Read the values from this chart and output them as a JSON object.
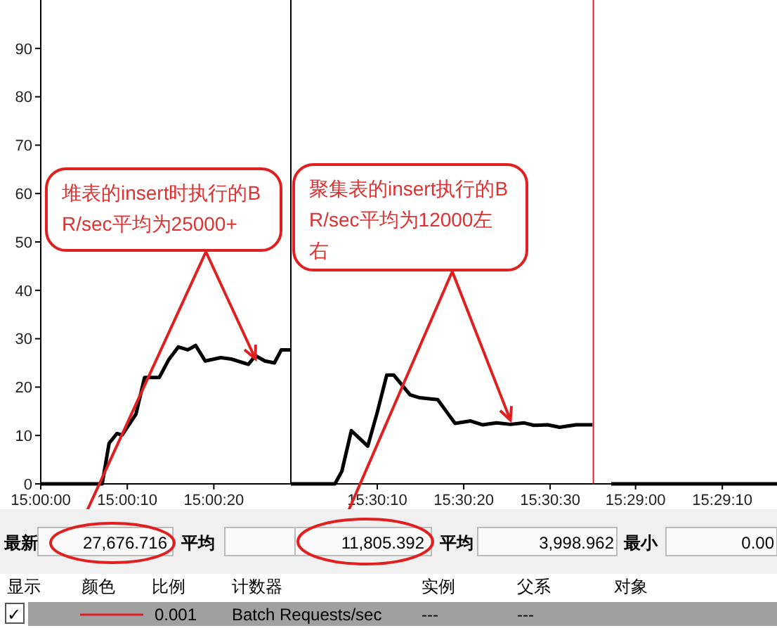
{
  "chart_data": [
    {
      "type": "line",
      "xlim": [
        15,
        15.008028
      ],
      "xticks": [
        {
          "value": 15,
          "label": "15:00:00"
        },
        {
          "value": 15.002778,
          "label": "15:00:10"
        },
        {
          "value": 15.005556,
          "label": "15:00:20"
        }
      ],
      "ylim": [
        0,
        100
      ],
      "yticks": [
        0,
        10,
        20,
        30,
        40,
        50,
        60,
        70,
        80,
        90
      ],
      "series": [
        {
          "color": "#000000",
          "x": [
            15,
            15.001972,
            15.002194,
            15.002444,
            15.002611,
            15.003056,
            15.003333,
            15.003806,
            15.004111,
            15.004417,
            15.004722,
            15.004972,
            15.005278,
            15.005778,
            15.006111,
            15.006667,
            15.006889,
            15.007194,
            15.0075,
            15.007722,
            15.008028
          ],
          "values": [
            0,
            0,
            8.4,
            10.4,
            10.1,
            14.4,
            22,
            22,
            25.7,
            28.3,
            27.7,
            28.6,
            25.4,
            26.1,
            25.8,
            24.7,
            26.5,
            25.4,
            25,
            27.7,
            27.7
          ]
        }
      ],
      "annotations": [
        {
          "text": "堆表的insert时执行的BR/sec平均为25000+",
          "x": 15.006889,
          "y": 25
        }
      ]
    },
    {
      "type": "line",
      "xlim": [
        15.5,
        15.509722
      ],
      "xticks": [
        {
          "value": 15.502778,
          "label": "15:30:10"
        },
        {
          "value": 15.505556,
          "label": "15:30:20"
        },
        {
          "value": 15.508333,
          "label": "15:30:30"
        }
      ],
      "ylim": [
        0,
        100
      ],
      "tick_labels": "x",
      "series": [
        {
          "color": "#000000",
          "x": [
            15.5,
            15.501417,
            15.501639,
            15.501944,
            15.502472,
            15.502778,
            15.503083,
            15.503306,
            15.503833,
            15.504139,
            15.504722,
            15.505028,
            15.505278,
            15.505778,
            15.506167,
            15.506611,
            15.507056,
            15.5075,
            15.507806,
            15.50825,
            15.508639,
            15.509167,
            15.509694
          ],
          "values": [
            0,
            0,
            2.6,
            11.0,
            7.8,
            14.8,
            22.5,
            22.5,
            18.4,
            17.8,
            17.4,
            14.7,
            12.5,
            13.0,
            12.2,
            12.6,
            12.3,
            12.6,
            12.1,
            12.2,
            11.7,
            12.2,
            12.2
          ]
        }
      ],
      "ref_lines": [
        {
          "axis": "x",
          "value": 15.509722,
          "color": "#e02020"
        }
      ],
      "annotations": [
        {
          "text": "聚集表的insert执行的BR/sec平均为12000左右",
          "x": 15.507056,
          "y": 12.3
        }
      ]
    },
    {
      "type": "line",
      "xlim": [
        15.481983,
        15.487861
      ],
      "xticks": [
        {
          "value": 15.483333,
          "label": "15:29:00"
        },
        {
          "value": 15.486111,
          "label": "15:29:10"
        }
      ],
      "ylim": [
        0,
        100
      ],
      "tick_labels": "x",
      "series": [
        {
          "color": "#000000",
          "x": [
            15.482556,
            15.487861
          ],
          "values": [
            0,
            0
          ]
        }
      ]
    },
    {
      "type": "other",
      "annotations": [
        "最新",
        "27,676.716",
        "平均",
        "11,805.392",
        "平均",
        "3,998.962",
        "最小",
        "0.00",
        "显示",
        "颜色",
        "比例",
        "计数器",
        "实例",
        "父系",
        "对象",
        "✓",
        "0.001",
        "Batch Requests/sec",
        "---",
        "---"
      ]
    }
  ]
}
